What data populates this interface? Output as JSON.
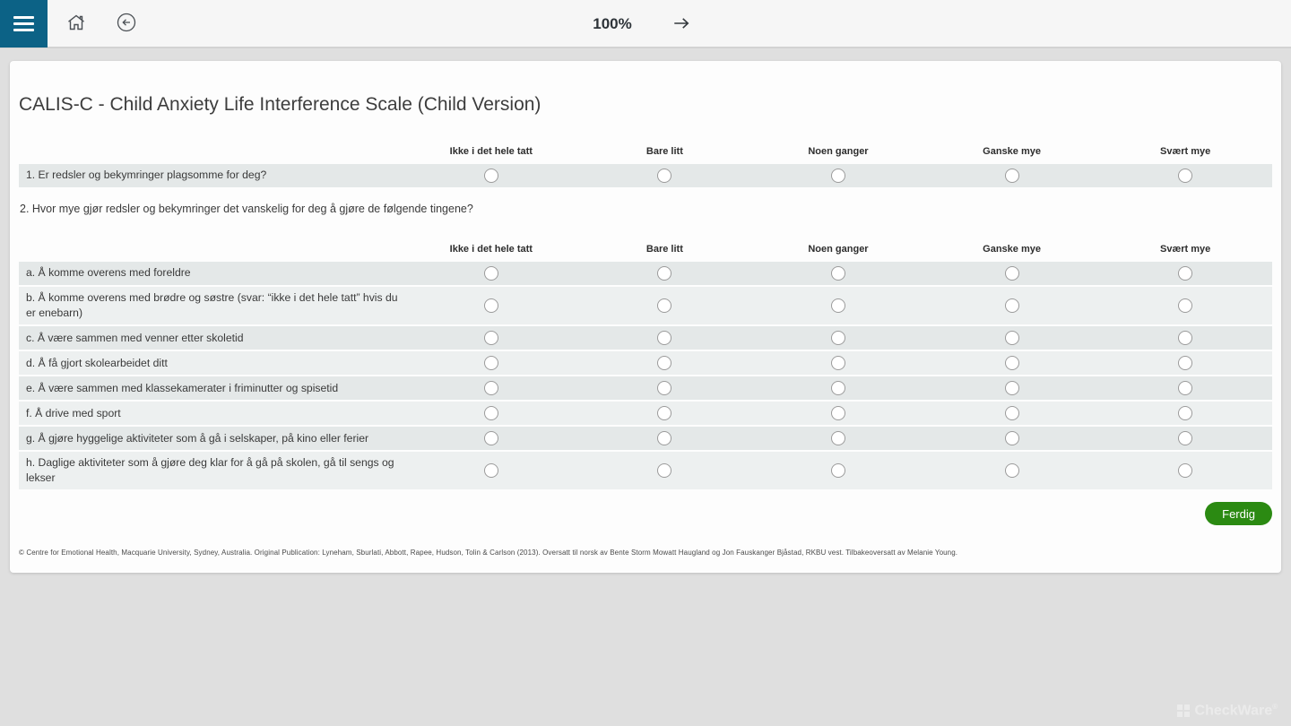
{
  "topbar": {
    "zoom_level": "100%",
    "icons": {
      "menu": "hamburger-icon",
      "home": "home-icon",
      "back": "arrow-left-circle-icon",
      "forward": "arrow-right-icon"
    }
  },
  "form": {
    "title": "CALIS-C - Child Anxiety Life Interference Scale (Child Version)",
    "options": [
      "Ikke i det hele tatt",
      "Bare litt",
      "Noen ganger",
      "Ganske mye",
      "Svært mye"
    ],
    "question1": {
      "label": "1. Er redsler og bekymringer plagsomme for deg?",
      "selected": null
    },
    "question2": {
      "label": "2. Hvor mye gjør redsler og bekymringer det vanskelig for deg å gjøre de følgende tingene?",
      "items": [
        "a. Å komme overens med foreldre",
        "b. Å komme overens med brødre og søstre (svar: “ikke i det hele tatt” hvis du er enebarn)",
        "c. Å være sammen med venner etter skoletid",
        "d. Å få gjort skolearbeidet ditt",
        "e. Å være sammen med klassekamerater i friminutter og spisetid",
        "f. Å drive med sport",
        "g. Å gjøre hyggelige aktiviteter som å gå i selskaper, på kino eller ferier",
        "h. Daglige aktiviteter som å gjøre deg klar for å gå på skolen, gå til sengs og lekser"
      ],
      "selected": [
        null,
        null,
        null,
        null,
        null,
        null,
        null,
        null
      ]
    },
    "submit_label": "Ferdig",
    "footer": "© Centre for Emotional Health, Macquarie University, Sydney, Australia. Original Publication: Lyneham, Sburlati, Abbott, Rapee, Hudson, Tolin & Carlson (2013). Oversatt til norsk av Bente Storm Mowatt Haugland og Jon Fauskanger Bjåstad, RKBU vest. Tilbakeoversatt av Melanie Young."
  },
  "watermark": {
    "label": "CheckWare",
    "reg": "®"
  },
  "colors": {
    "brand_blue": "#0c6286",
    "button_green": "#2b8a12",
    "row_dark": "#e4e8e8",
    "row_light": "#edf0f0",
    "page_bg": "#dfdfdf",
    "topbar_bg": "#f6f6f6"
  }
}
